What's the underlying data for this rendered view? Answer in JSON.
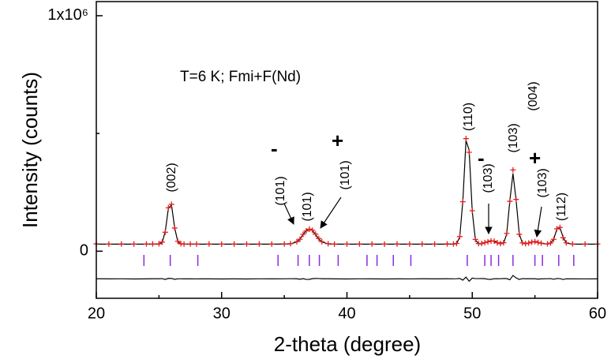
{
  "chart_data": {
    "type": "diffraction",
    "xlabel": "2-theta (degree)",
    "ylabel": "Intensity (counts)",
    "xlim": [
      20,
      60
    ],
    "xticks": [
      20,
      30,
      40,
      50,
      60
    ],
    "xminor_ticks": [
      25,
      35,
      45,
      55
    ],
    "ylim": [
      -200000,
      1060000
    ],
    "yticks": [
      0,
      {
        "value": 1000000,
        "label": "1x10⁶"
      }
    ],
    "yminor_ticks": [
      500000
    ],
    "annotations": [
      "T=6 K; Fmi+F(Nd)",
      "(002)",
      "-",
      "(101)",
      "(101)",
      "+",
      "(101)",
      "(110)",
      "-",
      "(103)",
      "(103)",
      "(004)",
      "+",
      "(103)",
      "(112)"
    ],
    "x": [
      20,
      21,
      22,
      23,
      24,
      24.5,
      25,
      25.25,
      25.5,
      25.75,
      26,
      26.25,
      26.5,
      26.75,
      27,
      27.5,
      28,
      29,
      30,
      31,
      32,
      33,
      34,
      35,
      35.5,
      36,
      36.25,
      36.5,
      36.75,
      37,
      37.25,
      37.5,
      37.75,
      38,
      38.5,
      39,
      40,
      41,
      42,
      43,
      44,
      45,
      46,
      47,
      48,
      48.5,
      48.75,
      49,
      49.25,
      49.5,
      49.75,
      50,
      50.25,
      50.5,
      50.75,
      51,
      51.25,
      51.5,
      51.75,
      52,
      52.25,
      52.5,
      52.75,
      53,
      53.25,
      53.5,
      53.75,
      54,
      54.25,
      54.5,
      54.75,
      55,
      55.25,
      55.5,
      56,
      56.25,
      56.5,
      56.75,
      57,
      57.25,
      57.5,
      58,
      59,
      60
    ],
    "series": [
      {
        "color": "#e0201e",
        "marker": "plus",
        "values": [
          31000,
          30500,
          30800,
          30200,
          30600,
          30900,
          31200,
          38500,
          80500,
          184000,
          199000,
          98500,
          42000,
          31500,
          30400,
          30800,
          30300,
          30600,
          30100,
          30500,
          30200,
          30700,
          30400,
          31000,
          32000,
          40500,
          51000,
          71500,
          86000,
          93500,
          89000,
          72500,
          54000,
          40500,
          31800,
          30500,
          30200,
          30800,
          30400,
          30100,
          30600,
          30300,
          30900,
          30500,
          31000,
          30800,
          33000,
          62000,
          210000,
          478000,
          420000,
          172000,
          50000,
          32500,
          33000,
          36500,
          40000,
          43500,
          42500,
          36000,
          32500,
          36000,
          75500,
          212000,
          345000,
          220000,
          72000,
          35500,
          32000,
          34500,
          38500,
          41000,
          37000,
          34000,
          31200,
          34500,
          50500,
          95000,
          101000,
          57000,
          35500,
          30600,
          30300,
          30500
        ]
      },
      {
        "color": "#000000",
        "marker": "line",
        "values": [
          30000,
          30000,
          30000,
          30000,
          30000,
          30000,
          30300,
          37000,
          82400,
          181400,
          196700,
          100000,
          41300,
          30700,
          30000,
          30000,
          30000,
          30000,
          30000,
          30000,
          30000,
          30000,
          30000,
          30300,
          30900,
          39500,
          52000,
          70200,
          87700,
          95000,
          87700,
          70200,
          52000,
          39500,
          30900,
          30000,
          30000,
          30000,
          30000,
          30000,
          30000,
          30000,
          30000,
          30000,
          30000,
          30000,
          31900,
          59700,
          214800,
          469900,
          429500,
          168200,
          48500,
          31000,
          31300,
          35100,
          41400,
          45000,
          41400,
          35100,
          31300,
          34000,
          73800,
          215400,
          330000,
          215400,
          73800,
          34000,
          31000,
          33400,
          37600,
          40000,
          37600,
          33400,
          30100,
          33000,
          51800,
          93000,
          99500,
          59200,
          34700,
          30000,
          30000,
          30000
        ]
      },
      {
        "color": "#000000",
        "marker": "line",
        "values": [
          -117000,
          -117500,
          -117200,
          -117800,
          -117400,
          -117100,
          -117100,
          -116500,
          -119900,
          -115400,
          -115700,
          -119500,
          -117300,
          -117200,
          -117600,
          -117200,
          -117700,
          -117400,
          -117900,
          -117500,
          -117800,
          -117300,
          -117600,
          -117300,
          -116900,
          -117000,
          -119000,
          -116700,
          -119700,
          -119500,
          -116700,
          -115700,
          -116000,
          -117000,
          -117100,
          -117500,
          -117800,
          -117200,
          -117600,
          -117900,
          -117400,
          -117700,
          -117100,
          -117500,
          -117000,
          -117200,
          -116900,
          -115700,
          -122800,
          -109900,
          -127500,
          -114200,
          -116500,
          -116500,
          -116300,
          -116600,
          -119400,
          -119500,
          -116900,
          -117100,
          -116800,
          -116000,
          -116300,
          -121400,
          -103000,
          -113400,
          -119800,
          -116500,
          -117000,
          -116900,
          -117100,
          -117000,
          -118600,
          -117400,
          -116900,
          -116500,
          -119300,
          -116000,
          -116500,
          -120200,
          -117200,
          -117400,
          -117700,
          -117500
        ]
      }
    ],
    "reflections": {
      "color": "#8a2be2",
      "x": [
        23.8,
        25.9,
        28.1,
        34.5,
        36.1,
        37.0,
        37.8,
        39.3,
        41.6,
        42.4,
        43.7,
        45.1,
        49.6,
        51.0,
        51.5,
        52.1,
        53.25,
        55.0,
        55.6,
        56.9,
        58.1
      ]
    }
  }
}
